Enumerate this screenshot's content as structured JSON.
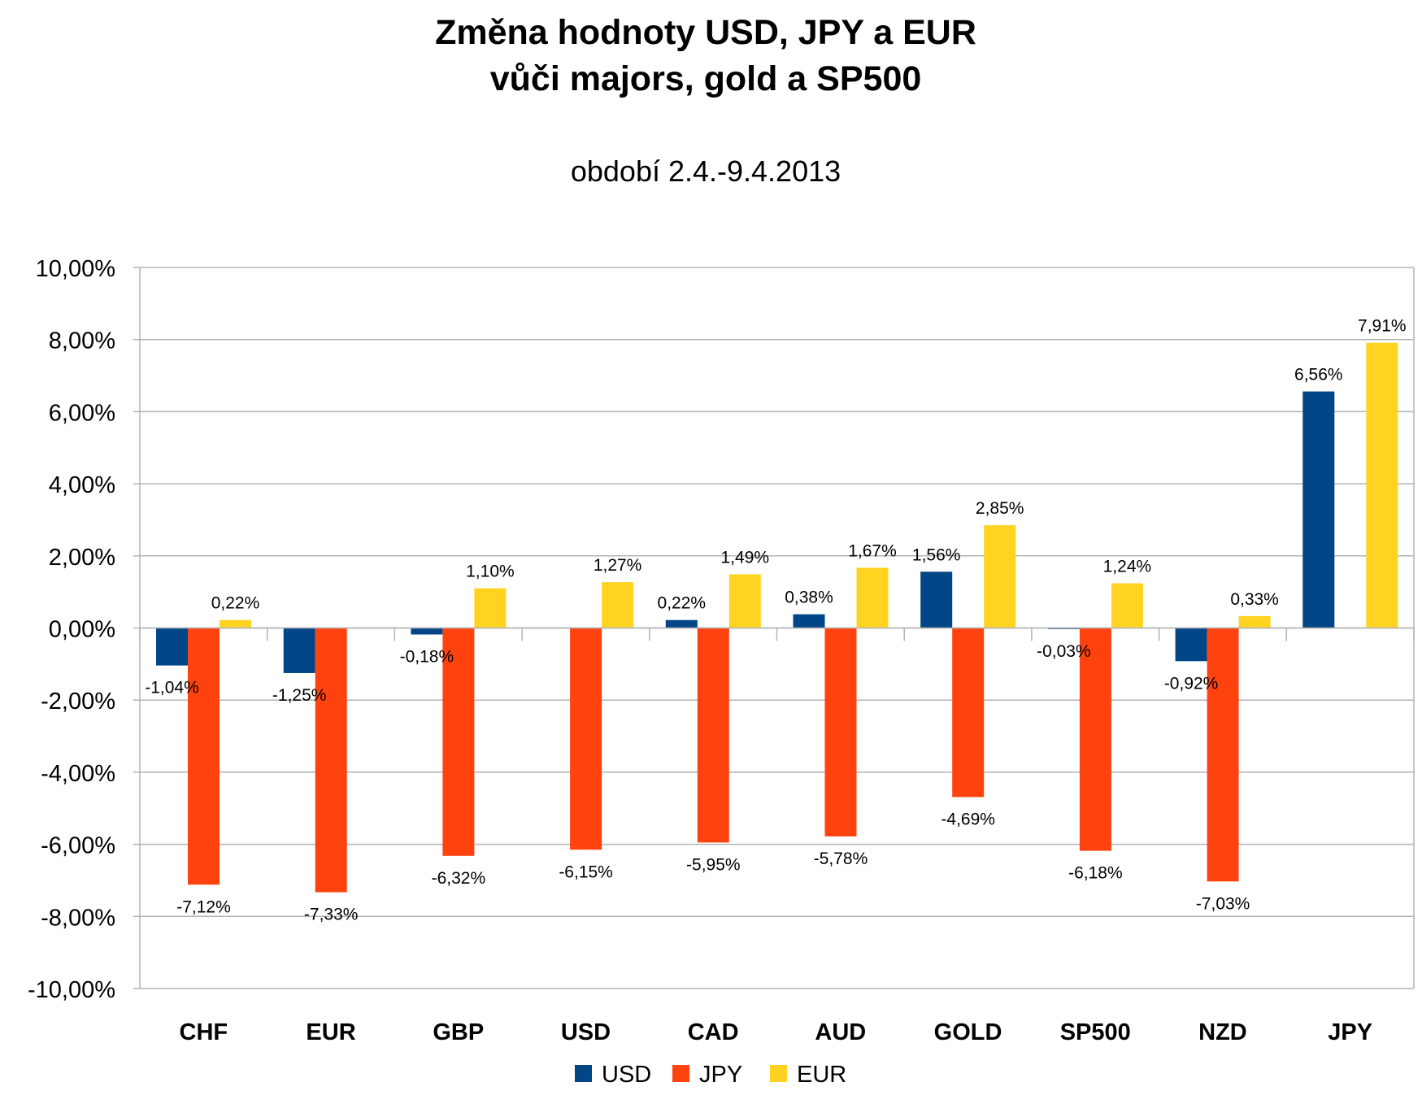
{
  "chart_data": {
    "type": "bar",
    "title_line1": "Změna hodnoty USD, JPY a EUR",
    "title_line2": "vůči majors, gold a SP500",
    "subtitle": "období 2.4.-9.4.2013",
    "categories": [
      "CHF",
      "EUR",
      "GBP",
      "USD",
      "CAD",
      "AUD",
      "GOLD",
      "SP500",
      "NZD",
      "JPY"
    ],
    "series": [
      {
        "name": "USD",
        "color": "#004586",
        "values": [
          -1.04,
          -1.25,
          -0.18,
          null,
          0.22,
          0.38,
          1.56,
          -0.03,
          -0.92,
          6.56
        ],
        "labels": [
          "-1,04%",
          "-1,25%",
          "-0,18%",
          "",
          "0,22%",
          "0,38%",
          "1,56%",
          "-0,03%",
          "-0,92%",
          "6,56%"
        ]
      },
      {
        "name": "JPY",
        "color": "#FF420E",
        "values": [
          -7.12,
          -7.33,
          -6.32,
          -6.15,
          -5.95,
          -5.78,
          -4.69,
          -6.18,
          -7.03,
          null
        ],
        "labels": [
          "-7,12%",
          "-7,33%",
          "-6,32%",
          "-6,15%",
          "-5,95%",
          "-5,78%",
          "-4,69%",
          "-6,18%",
          "-7,03%",
          ""
        ]
      },
      {
        "name": "EUR",
        "color": "#FFD320",
        "values": [
          0.22,
          null,
          1.1,
          1.27,
          1.49,
          1.67,
          2.85,
          1.24,
          0.33,
          7.91
        ],
        "labels": [
          "0,22%",
          "",
          "1,10%",
          "1,27%",
          "1,49%",
          "1,67%",
          "2,85%",
          "1,24%",
          "0,33%",
          "7,91%"
        ]
      }
    ],
    "ylim": [
      -10,
      10
    ],
    "yticks": [
      10,
      8,
      6,
      4,
      2,
      0,
      -2,
      -4,
      -6,
      -8,
      -10
    ],
    "ytick_labels": [
      "10,00%",
      "8,00%",
      "6,00%",
      "4,00%",
      "2,00%",
      "0,00%",
      "-2,00%",
      "-4,00%",
      "-6,00%",
      "-8,00%",
      "-10,00%"
    ],
    "grid": true,
    "legend_position": "bottom"
  }
}
